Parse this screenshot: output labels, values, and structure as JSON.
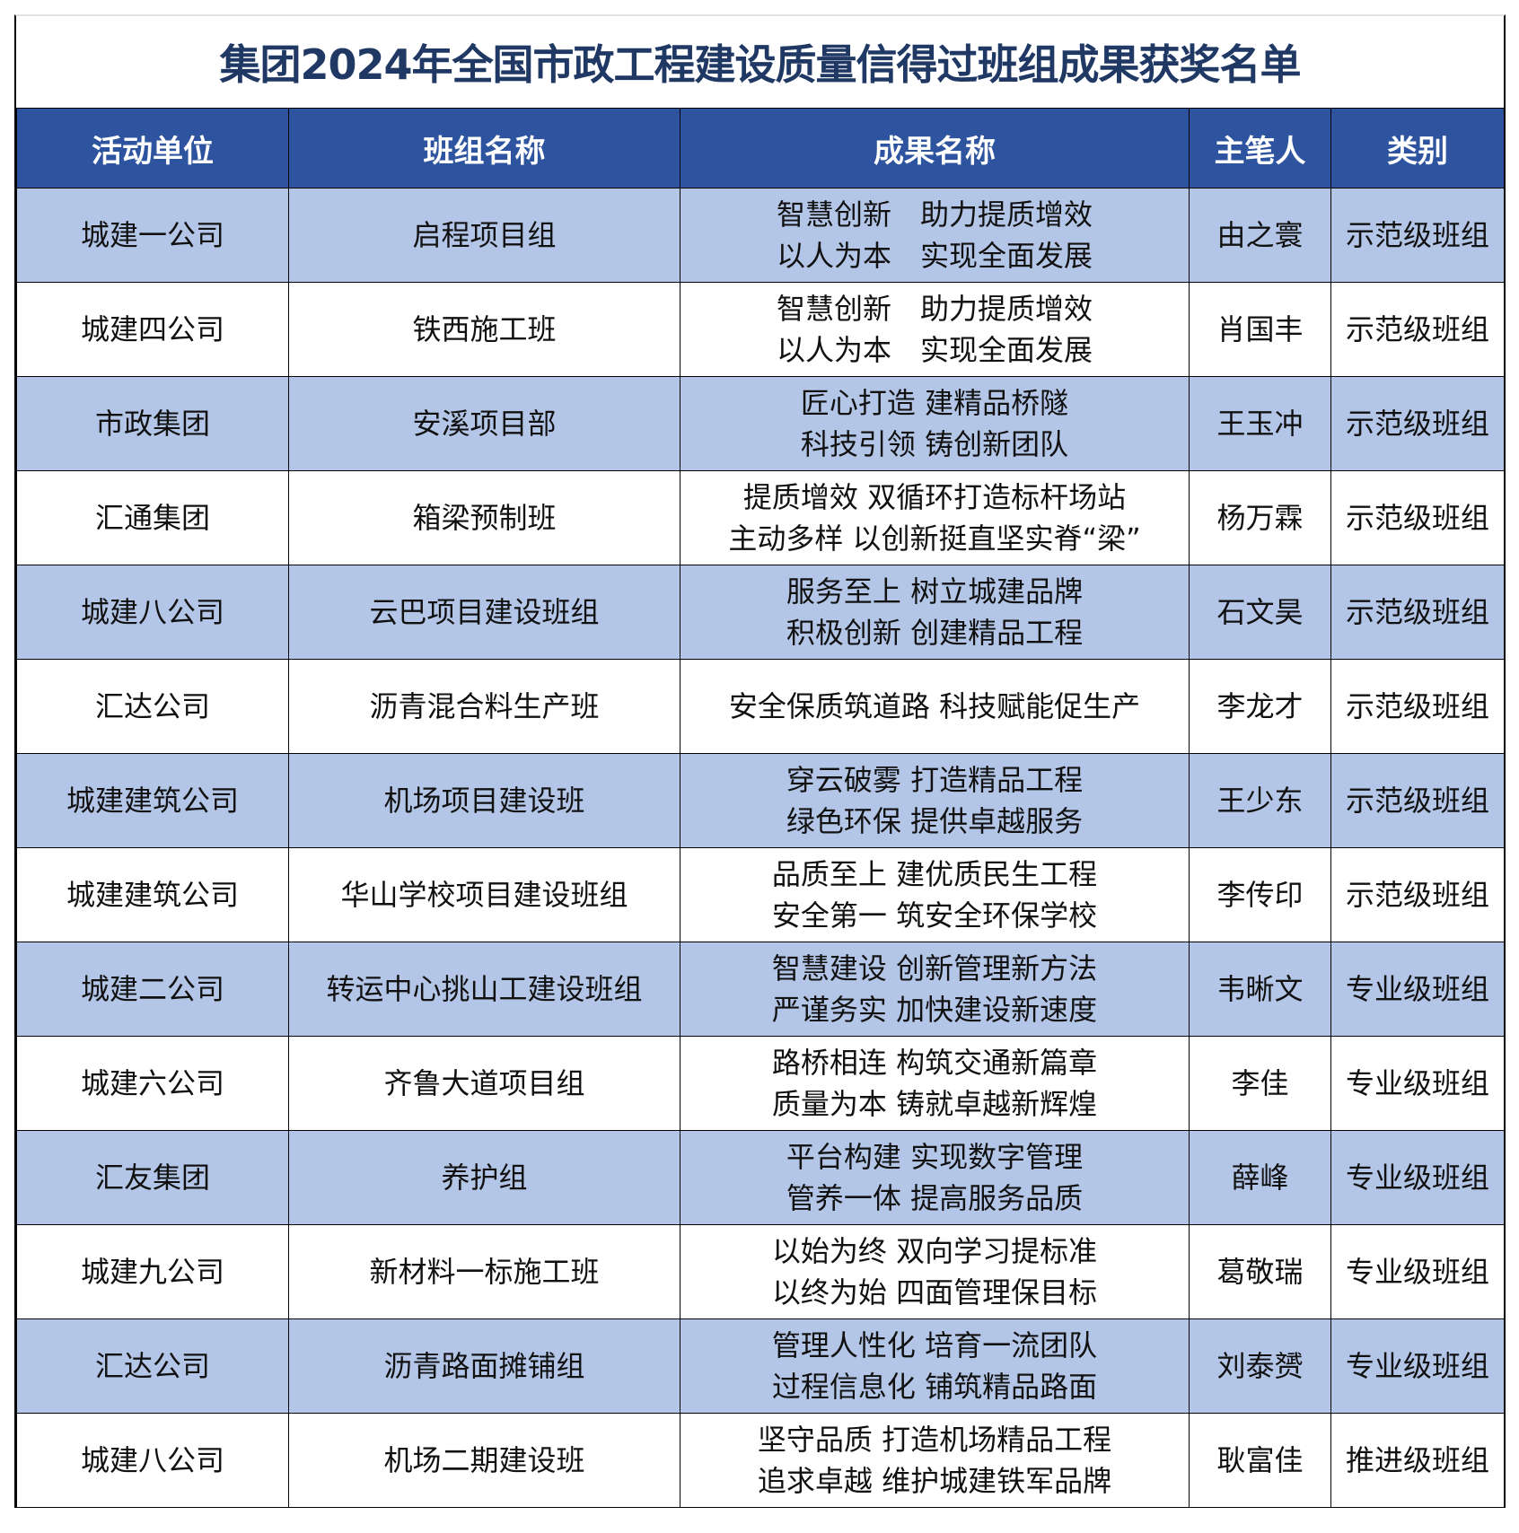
{
  "title": "集团2024年全国市政工程建设质量信得过班组成果获奖名单",
  "columns": [
    "活动单位",
    "班组名称",
    "成果名称",
    "主笔人",
    "类别"
  ],
  "colors": {
    "header_bg": "#2e54a0",
    "alt_row_bg": "#b4c6e7",
    "title_color": "#1f3864"
  },
  "rows": [
    {
      "unit": "城建一公司",
      "team": "启程项目组",
      "achievement": [
        "智慧创新　助力提质增效",
        "以人为本　实现全面发展"
      ],
      "author": "由之寰",
      "category": "示范级班组"
    },
    {
      "unit": "城建四公司",
      "team": "铁西施工班",
      "achievement": [
        "智慧创新　助力提质增效",
        "以人为本　实现全面发展"
      ],
      "author": "肖国丰",
      "category": "示范级班组"
    },
    {
      "unit": "市政集团",
      "team": "安溪项目部",
      "achievement": [
        "匠心打造 建精品桥隧",
        "科技引领 铸创新团队"
      ],
      "author": "王玉冲",
      "category": "示范级班组"
    },
    {
      "unit": "汇通集团",
      "team": "箱梁预制班",
      "achievement": [
        "提质增效 双循环打造标杆场站",
        "主动多样 以创新挺直坚实脊“梁”"
      ],
      "author": "杨万霖",
      "category": "示范级班组"
    },
    {
      "unit": "城建八公司",
      "team": "云巴项目建设班组",
      "achievement": [
        "服务至上 树立城建品牌",
        "积极创新 创建精品工程"
      ],
      "author": "石文昊",
      "category": "示范级班组"
    },
    {
      "unit": "汇达公司",
      "team": "沥青混合料生产班",
      "achievement": [
        "安全保质筑道路 科技赋能促生产"
      ],
      "author": "李龙才",
      "category": "示范级班组"
    },
    {
      "unit": "城建建筑公司",
      "team": "机场项目建设班",
      "achievement": [
        "穿云破雾 打造精品工程",
        "绿色环保 提供卓越服务"
      ],
      "author": "王少东",
      "category": "示范级班组"
    },
    {
      "unit": "城建建筑公司",
      "team": "华山学校项目建设班组",
      "achievement": [
        "品质至上 建优质民生工程",
        "安全第一 筑安全环保学校"
      ],
      "author": "李传印",
      "category": "示范级班组"
    },
    {
      "unit": "城建二公司",
      "team": "转运中心挑山工建设班组",
      "achievement": [
        "智慧建设 创新管理新方法",
        "严谨务实 加快建设新速度"
      ],
      "author": "韦晰文",
      "category": "专业级班组"
    },
    {
      "unit": "城建六公司",
      "team": "齐鲁大道项目组",
      "achievement": [
        "路桥相连 构筑交通新篇章",
        "质量为本 铸就卓越新辉煌"
      ],
      "author": "李佳",
      "category": "专业级班组"
    },
    {
      "unit": "汇友集团",
      "team": "养护组",
      "achievement": [
        "平台构建 实现数字管理",
        "管养一体 提高服务品质"
      ],
      "author": "薛峰",
      "category": "专业级班组"
    },
    {
      "unit": "城建九公司",
      "team": "新材料一标施工班",
      "achievement": [
        "以始为终 双向学习提标准",
        "以终为始 四面管理保目标"
      ],
      "author": "葛敬瑞",
      "category": "专业级班组"
    },
    {
      "unit": "汇达公司",
      "team": "沥青路面摊铺组",
      "achievement": [
        "管理人性化 培育一流团队",
        "过程信息化 铺筑精品路面"
      ],
      "author": "刘泰赟",
      "category": "专业级班组"
    },
    {
      "unit": "城建八公司",
      "team": "机场二期建设班",
      "achievement": [
        "坚守品质 打造机场精品工程",
        "追求卓越 维护城建铁军品牌"
      ],
      "author": "耿富佳",
      "category": "推进级班组"
    }
  ]
}
